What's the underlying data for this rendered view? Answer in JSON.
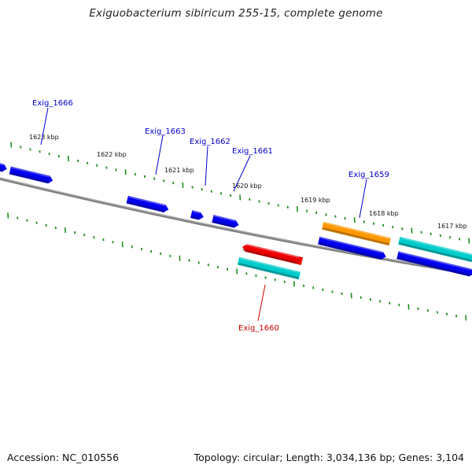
{
  "title": "Exiguobacterium sibiricum 255-15, complete genome",
  "footer": {
    "accession": "Accession: NC_010556",
    "summary": "Topology: circular; Length: 3,034,136 bp; Genes: 3,104"
  },
  "colors": {
    "backbone": "#808080",
    "tick": "#1f8f1f",
    "label_default": "#0000cc",
    "label_highlight": "#cc0000",
    "gene_blue": "#0000ee",
    "gene_red": "#ee0000",
    "gene_orange": "#ff9900",
    "gene_cyan": "#00cccc"
  },
  "kbp_labels": [
    "1623 kbp",
    "1622 kbp",
    "1621 kbp",
    "1620 kbp",
    "1619 kbp",
    "1618 kbp",
    "1617 kbp"
  ],
  "gene_labels": [
    {
      "id": "g1666",
      "text": "Exig_1666",
      "color": "#0000cc"
    },
    {
      "id": "g1663",
      "text": "Exig_1663",
      "color": "#0000cc"
    },
    {
      "id": "g1662",
      "text": "Exig_1662",
      "color": "#0000cc"
    },
    {
      "id": "g1661",
      "text": "Exig_1661",
      "color": "#0000cc"
    },
    {
      "id": "g1659",
      "text": "Exig_1659",
      "color": "#0000cc"
    },
    {
      "id": "g1660",
      "text": "Exig_1660",
      "color": "#cc0000"
    }
  ]
}
